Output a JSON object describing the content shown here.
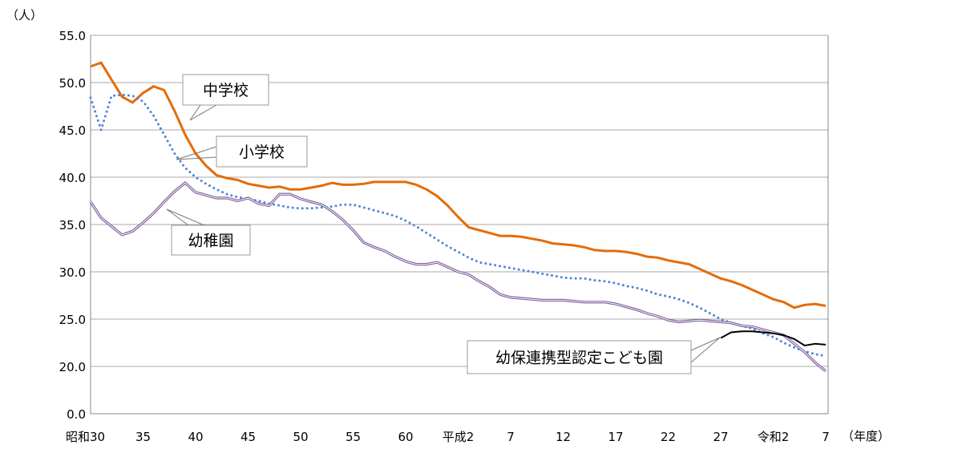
{
  "chart_data": {
    "type": "line",
    "ylabel": "（人）",
    "xlabel": "（年度）",
    "y_ticks": [
      "0.0",
      "20.0",
      "25.0",
      "30.0",
      "35.0",
      "40.0",
      "45.0",
      "50.0",
      "55.0"
    ],
    "x_ticks": [
      {
        "year": 1955,
        "label": "昭和30"
      },
      {
        "year": 1960,
        "label": "35"
      },
      {
        "year": 1965,
        "label": "40"
      },
      {
        "year": 1970,
        "label": "45"
      },
      {
        "year": 1975,
        "label": "50"
      },
      {
        "year": 1980,
        "label": "55"
      },
      {
        "year": 1985,
        "label": "60"
      },
      {
        "year": 1990,
        "label": "平成2"
      },
      {
        "year": 1995,
        "label": "7"
      },
      {
        "year": 2000,
        "label": "12"
      },
      {
        "year": 2005,
        "label": "17"
      },
      {
        "year": 2010,
        "label": "22"
      },
      {
        "year": 2015,
        "label": "27"
      },
      {
        "year": 2020,
        "label": "令和2"
      },
      {
        "year": 2025,
        "label": "7"
      }
    ],
    "grid": true,
    "series": [
      {
        "name": "中学校",
        "color": "#e36c0a",
        "style": "solid",
        "start": 1955,
        "values": [
          51.7,
          52.1,
          50.3,
          48.5,
          47.9,
          48.9,
          49.6,
          49.2,
          47.0,
          44.5,
          42.5,
          41.2,
          40.2,
          39.9,
          39.7,
          39.3,
          39.1,
          38.9,
          39.0,
          38.7,
          38.7,
          38.9,
          39.1,
          39.4,
          39.2,
          39.2,
          39.3,
          39.5,
          39.5,
          39.5,
          39.5,
          39.2,
          38.7,
          38.0,
          37.0,
          35.8,
          34.7,
          34.4,
          34.1,
          33.8,
          33.8,
          33.7,
          33.5,
          33.3,
          33.0,
          32.9,
          32.8,
          32.6,
          32.3,
          32.2,
          32.2,
          32.1,
          31.9,
          31.6,
          31.5,
          31.2,
          31.0,
          30.8,
          30.3,
          29.8,
          29.3,
          29.0,
          28.6,
          28.1,
          27.6,
          27.1,
          26.8,
          26.2,
          26.5,
          26.6,
          26.4
        ]
      },
      {
        "name": "小学校",
        "color": "#4a86d8",
        "style": "dotted",
        "start": 1955,
        "values": [
          48.4,
          45.0,
          48.6,
          48.7,
          48.6,
          48.0,
          46.5,
          44.5,
          42.5,
          41.0,
          40.0,
          39.3,
          38.7,
          38.2,
          37.9,
          37.7,
          37.5,
          37.2,
          37.0,
          36.8,
          36.7,
          36.7,
          36.8,
          36.9,
          37.1,
          37.1,
          36.8,
          36.5,
          36.2,
          35.9,
          35.4,
          34.8,
          34.1,
          33.4,
          32.7,
          32.1,
          31.5,
          31.0,
          30.8,
          30.6,
          30.4,
          30.2,
          30.0,
          29.8,
          29.6,
          29.4,
          29.3,
          29.3,
          29.1,
          29.0,
          28.8,
          28.5,
          28.3,
          28.0,
          27.6,
          27.4,
          27.1,
          26.7,
          26.2,
          25.6,
          25.0,
          24.6,
          24.3,
          24.0,
          23.5,
          23.1,
          22.5,
          22.0,
          21.6,
          21.3,
          21.1
        ]
      },
      {
        "name": "幼稚園",
        "color": "#7a5a9a",
        "style": "double",
        "start": 1955,
        "values": [
          37.4,
          35.7,
          34.8,
          33.9,
          34.3,
          35.2,
          36.2,
          37.4,
          38.5,
          39.4,
          38.4,
          38.1,
          37.8,
          37.8,
          37.5,
          37.8,
          37.2,
          37.0,
          38.2,
          38.2,
          37.7,
          37.4,
          37.1,
          36.4,
          35.5,
          34.4,
          33.1,
          32.6,
          32.2,
          31.6,
          31.1,
          30.8,
          30.8,
          31.0,
          30.5,
          30.0,
          29.7,
          29.0,
          28.4,
          27.6,
          27.3,
          27.2,
          27.1,
          27.0,
          27.0,
          27.0,
          26.9,
          26.8,
          26.8,
          26.8,
          26.6,
          26.3,
          26.0,
          25.6,
          25.3,
          24.9,
          24.7,
          24.8,
          24.9,
          24.8,
          24.7,
          24.6,
          24.3,
          24.2,
          23.9,
          23.6,
          23.3,
          22.4,
          21.5,
          20.4,
          19.5
        ]
      },
      {
        "name": "幼保連携型認定こども園",
        "color": "#000000",
        "style": "solid",
        "start": 2015,
        "values": [
          23.0,
          23.6,
          23.7,
          23.7,
          23.6,
          23.5,
          23.3,
          22.9,
          22.2,
          22.4,
          22.3
        ]
      }
    ]
  }
}
